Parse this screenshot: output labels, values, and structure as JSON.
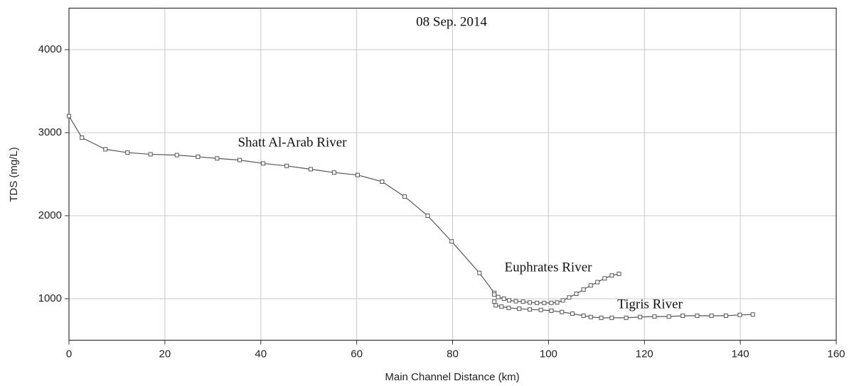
{
  "chart_data": {
    "type": "line",
    "annotations": [
      "08 Sep. 2014"
    ],
    "x_label": "Main Channel Distance (km)",
    "y_label": "TDS (mg/L)",
    "xlim": [
      0,
      160
    ],
    "xticks": [
      0,
      20,
      40,
      60,
      80,
      100,
      120,
      140,
      160
    ],
    "ylim": [
      500,
      4500
    ],
    "yticks": [
      1000,
      2000,
      3000,
      4000
    ],
    "grid": true,
    "series": [
      {
        "name": "Shatt Al-Arab River",
        "color": "#555555",
        "x": [
          0,
          2.7,
          7.6,
          12.2,
          17,
          22.5,
          26.9,
          30.9,
          35.6,
          40.5,
          45.4,
          50.4,
          55.3,
          60.2,
          65.3,
          70,
          74.8,
          79.8,
          85.6,
          88.7
        ],
        "values": [
          3200,
          2940,
          2800,
          2760,
          2740,
          2730,
          2710,
          2690,
          2670,
          2630,
          2600,
          2560,
          2520,
          2490,
          2410,
          2230,
          2000,
          1690,
          1310,
          1070
        ]
      },
      {
        "name": "Euphrates River",
        "color": "#555555",
        "x": [
          88.7,
          89.5,
          90.7,
          91.8,
          93.2,
          94.7,
          96.1,
          97.6,
          99.1,
          100.6,
          101.8,
          103,
          104.3,
          105.8,
          107.3,
          108.8,
          110.2,
          111.7,
          113.2,
          114.7
        ],
        "values": [
          1050,
          1020,
          1000,
          980,
          970,
          965,
          955,
          950,
          950,
          950,
          955,
          980,
          1015,
          1060,
          1110,
          1160,
          1200,
          1245,
          1280,
          1300
        ]
      },
      {
        "name": "Tigris River",
        "color": "#555555",
        "x": [
          88.7,
          89,
          90.2,
          91.7,
          93.9,
          96.1,
          98.4,
          100.6,
          102.8,
          105,
          107.3,
          108.8,
          111,
          113.2,
          116.2,
          119.1,
          122.1,
          125.1,
          128,
          131,
          134,
          137,
          139.9,
          142.6
        ],
        "values": [
          965,
          920,
          905,
          890,
          880,
          870,
          865,
          855,
          840,
          820,
          795,
          780,
          770,
          770,
          770,
          780,
          785,
          785,
          795,
          795,
          795,
          795,
          805,
          810
        ]
      }
    ]
  }
}
